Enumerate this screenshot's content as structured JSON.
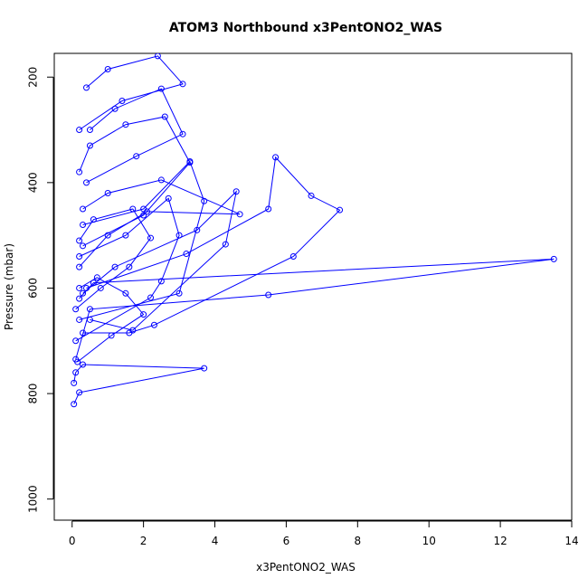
{
  "chart_data": {
    "type": "line",
    "title": "ATOM3 Northbound x3PentONO2_WAS",
    "xlabel": "x3PentONO2_WAS",
    "ylabel": "Pressure (mbar)",
    "xlim": [
      -0.5,
      14
    ],
    "ylim": [
      1040,
      155
    ],
    "y_reversed": true,
    "x_ticks": [
      0,
      2,
      4,
      6,
      8,
      10,
      12,
      14
    ],
    "y_ticks": [
      200,
      400,
      600,
      800,
      1000
    ],
    "grid": false,
    "legend": "none",
    "series_color": "#0000FF",
    "marker": "open-circle",
    "series": [
      {
        "x": [
          0.05,
          0.2,
          3.7,
          0.3,
          0.1,
          0.05
        ],
        "y": [
          820,
          798,
          752,
          745,
          760,
          780
        ]
      },
      {
        "x": [
          0.1,
          0.5,
          5.5,
          13.5,
          0.6,
          0.2
        ],
        "y": [
          735,
          640,
          613,
          545,
          590,
          620
        ]
      },
      {
        "x": [
          0.3,
          1.6,
          2.3,
          6.2,
          7.5,
          6.7,
          5.7,
          5.5,
          3.2,
          0.4
        ],
        "y": [
          685,
          685,
          670,
          540,
          452,
          425,
          352,
          450,
          535,
          600
        ]
      },
      {
        "x": [
          0.2,
          3.0,
          3.7,
          3.3,
          2.0,
          0.3
        ],
        "y": [
          660,
          610,
          435,
          360,
          450,
          480
        ]
      },
      {
        "x": [
          0.1,
          2.2,
          2.5,
          3.0,
          2.7,
          1.5,
          0.2
        ],
        "y": [
          700,
          618,
          587,
          500,
          430,
          500,
          540
        ]
      },
      {
        "x": [
          0.5,
          1.7,
          4.3,
          4.6,
          3.5,
          1.2,
          0.3
        ],
        "y": [
          660,
          680,
          517,
          417,
          490,
          560,
          610
        ]
      },
      {
        "x": [
          0.2,
          1.0,
          2.1,
          4.7,
          2.5,
          1.0,
          0.3
        ],
        "y": [
          560,
          500,
          455,
          460,
          395,
          420,
          450
        ]
      },
      {
        "x": [
          0.3,
          2.0,
          3.3,
          2.6,
          1.5,
          0.5,
          0.2
        ],
        "y": [
          520,
          462,
          362,
          275,
          290,
          330,
          380
        ]
      },
      {
        "x": [
          0.4,
          1.8,
          3.1,
          2.5,
          1.2,
          0.5
        ],
        "y": [
          400,
          350,
          308,
          222,
          260,
          300
        ]
      },
      {
        "x": [
          0.2,
          1.4,
          3.1,
          2.4,
          1.0,
          0.4
        ],
        "y": [
          300,
          245,
          213,
          160,
          185,
          220
        ]
      },
      {
        "x": [
          0.1,
          0.8,
          1.6,
          2.2,
          1.7,
          0.6,
          0.2
        ],
        "y": [
          640,
          600,
          560,
          505,
          450,
          470,
          510
        ]
      },
      {
        "x": [
          0.15,
          1.1,
          2.0,
          1.5,
          0.7,
          0.2
        ],
        "y": [
          740,
          690,
          650,
          610,
          580,
          600
        ]
      }
    ]
  }
}
